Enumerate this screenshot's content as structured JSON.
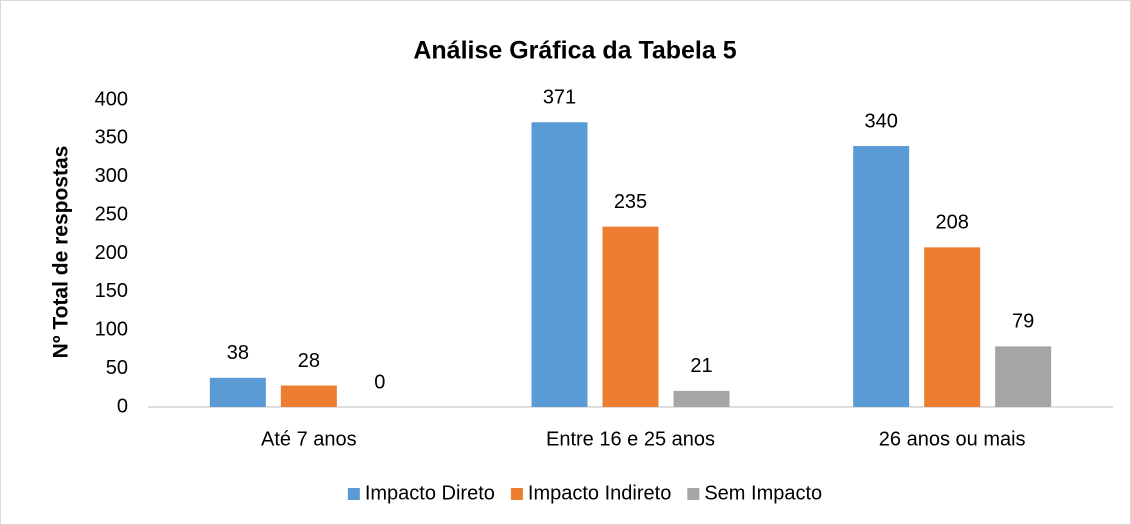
{
  "chart_data": {
    "type": "bar",
    "title": "Análise Gráfica da Tabela 5",
    "y_label": "Nº Total de respostas",
    "categories": [
      "Até 7 anos",
      "Entre 16 e 25 anos",
      "26 anos ou mais"
    ],
    "series": [
      {
        "name": "Impacto Direto",
        "color": "#5b9bd5",
        "values": [
          38,
          371,
          340
        ]
      },
      {
        "name": "Impacto Indireto",
        "color": "#ed7d31",
        "values": [
          28,
          235,
          208
        ]
      },
      {
        "name": "Sem Impacto",
        "color": "#a5a5a5",
        "values": [
          0,
          21,
          79
        ]
      }
    ],
    "ylim": [
      0,
      400
    ],
    "yticks": [
      0,
      50,
      100,
      150,
      200,
      250,
      300,
      350,
      400
    ],
    "grid": false,
    "legend": "bottom"
  }
}
